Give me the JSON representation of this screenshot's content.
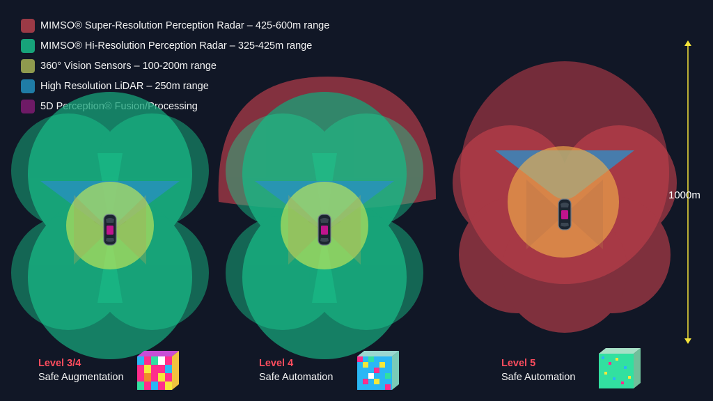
{
  "legend": [
    {
      "label": "MIMSO® Super-Resolution  Perception Radar – 425-600m range",
      "color": "#9b3a46"
    },
    {
      "label": "MIMSO® Hi-Resolution  Perception Radar – 325-425m range",
      "color": "#17a37a"
    },
    {
      "label": "360° Vision Sensors – 100-200m range",
      "color": "#8f9a4e"
    },
    {
      "label": "High Resolution  LiDAR – 250m range",
      "color": "#1f7ca6"
    },
    {
      "label": "5D Perception® Fusion/Processing",
      "color": "#6e1a66"
    }
  ],
  "levels": [
    {
      "title": "Level 3/4",
      "subtitle": "Safe Augmentation"
    },
    {
      "title": "Level 4",
      "subtitle": "Safe Automation"
    },
    {
      "title": "Level 5",
      "subtitle": "Safe Automation"
    }
  ],
  "scale": {
    "label": "1000m"
  },
  "colors": {
    "accent_red": "#ff4d5e",
    "scale_yellow": "#f5e43a",
    "background": "#111726"
  }
}
